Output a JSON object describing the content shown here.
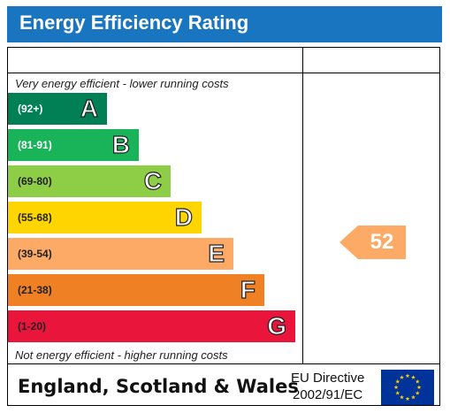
{
  "header": {
    "title": "Energy Efficiency Rating"
  },
  "captions": {
    "top": "Very energy efficient - lower running costs",
    "bottom": "Not energy efficient - higher running costs"
  },
  "bands": [
    {
      "range": "(92+)",
      "letter": "A",
      "color": "#008054"
    },
    {
      "range": "(81-91)",
      "letter": "B",
      "color": "#19b459"
    },
    {
      "range": "(69-80)",
      "letter": "C",
      "color": "#8dce46"
    },
    {
      "range": "(55-68)",
      "letter": "D",
      "color": "#ffd500"
    },
    {
      "range": "(39-54)",
      "letter": "E",
      "color": "#fcaa65"
    },
    {
      "range": "(21-38)",
      "letter": "F",
      "color": "#ef8023"
    },
    {
      "range": "(1-20)",
      "letter": "G",
      "color": "#e9153b"
    }
  ],
  "current_rating": {
    "value": "52",
    "color": "#fcaa65"
  },
  "footer": {
    "region": "England, Scotland & Wales",
    "directive_line1": "EU Directive",
    "directive_line2": "2002/91/EC"
  },
  "eu_flag": {
    "background": "#003399",
    "stars": "#ffcc00"
  }
}
